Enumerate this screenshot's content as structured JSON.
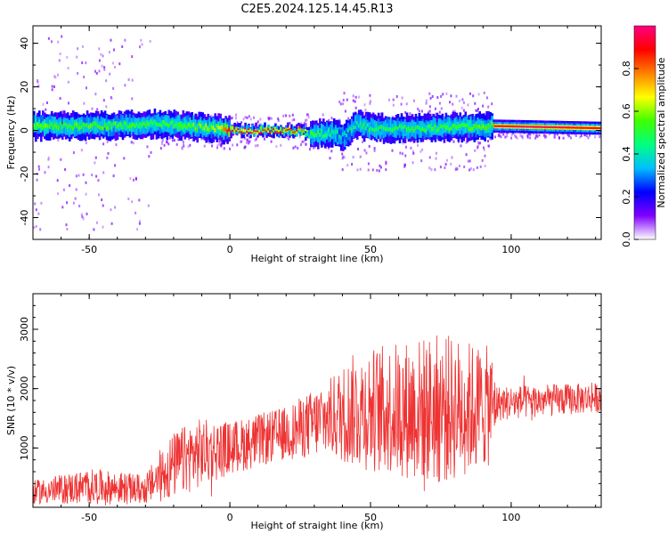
{
  "title": "C2E5.2024.125.14.45.R13",
  "chart_data": [
    {
      "type": "heatmap",
      "xlabel": "Height of straight line (km)",
      "ylabel": "Frequency (Hz)",
      "xlim": [
        -70,
        132
      ],
      "ylim": [
        -50,
        48
      ],
      "xticks": [
        -50,
        0,
        50,
        100
      ],
      "yticks": [
        -40,
        -20,
        0,
        20,
        40
      ],
      "colorbar": {
        "label": "Normalized spectral amplitude",
        "range": [
          0,
          1
        ],
        "ticks": [
          "0.0",
          "0.2",
          "0.4",
          "0.6",
          "0.8"
        ],
        "colors": [
          "#ffffff",
          "#7f00ff",
          "#0000ff",
          "#00bfff",
          "#00ff80",
          "#40ff00",
          "#ffff00",
          "#ff8000",
          "#ff0000",
          "#ff0080"
        ]
      },
      "ridge": [
        {
          "x": -70,
          "f": 2,
          "amp": 0.55
        },
        {
          "x": -50,
          "f": 2,
          "amp": 0.55
        },
        {
          "x": -25,
          "f": 3,
          "amp": 0.5
        },
        {
          "x": -5,
          "f": 1,
          "amp": 0.6
        },
        {
          "x": 0,
          "f": 0,
          "amp": 0.9
        },
        {
          "x": 25,
          "f": 0,
          "amp": 0.85
        },
        {
          "x": 28,
          "f": -2,
          "amp": 0.5
        },
        {
          "x": 36,
          "f": -1,
          "amp": 0.45
        },
        {
          "x": 40,
          "f": -3,
          "amp": 0.4
        },
        {
          "x": 45,
          "f": 3,
          "amp": 0.45
        },
        {
          "x": 50,
          "f": 1,
          "amp": 0.5
        },
        {
          "x": 70,
          "f": 1,
          "amp": 0.5
        },
        {
          "x": 93,
          "f": 2,
          "amp": 0.55
        },
        {
          "x": 94,
          "f": 2,
          "amp": 0.95
        },
        {
          "x": 132,
          "f": 1,
          "amp": 0.95
        }
      ]
    },
    {
      "type": "line",
      "xlabel": "Height of straight line (km)",
      "ylabel": "SNR (10 * v/v)",
      "xlim": [
        -70,
        132
      ],
      "ylim": [
        0,
        3600
      ],
      "xticks": [
        -50,
        0,
        50,
        100
      ],
      "yticks": [
        1000,
        2000,
        3000
      ],
      "color": "#ee3333",
      "envelope": [
        {
          "x": -70,
          "base": 250,
          "amp": 200
        },
        {
          "x": -50,
          "base": 350,
          "amp": 300
        },
        {
          "x": -30,
          "base": 300,
          "amp": 250
        },
        {
          "x": -22,
          "base": 650,
          "amp": 550
        },
        {
          "x": -12,
          "base": 900,
          "amp": 600
        },
        {
          "x": 0,
          "base": 1000,
          "amp": 450
        },
        {
          "x": 20,
          "base": 1250,
          "amp": 450
        },
        {
          "x": 35,
          "base": 1500,
          "amp": 650
        },
        {
          "x": 45,
          "base": 1650,
          "amp": 1000
        },
        {
          "x": 60,
          "base": 1650,
          "amp": 1150
        },
        {
          "x": 75,
          "base": 1650,
          "amp": 1300
        },
        {
          "x": 93,
          "base": 1700,
          "amp": 1000
        },
        {
          "x": 95,
          "base": 1750,
          "amp": 300
        },
        {
          "x": 132,
          "base": 1850,
          "amp": 250
        }
      ]
    }
  ]
}
